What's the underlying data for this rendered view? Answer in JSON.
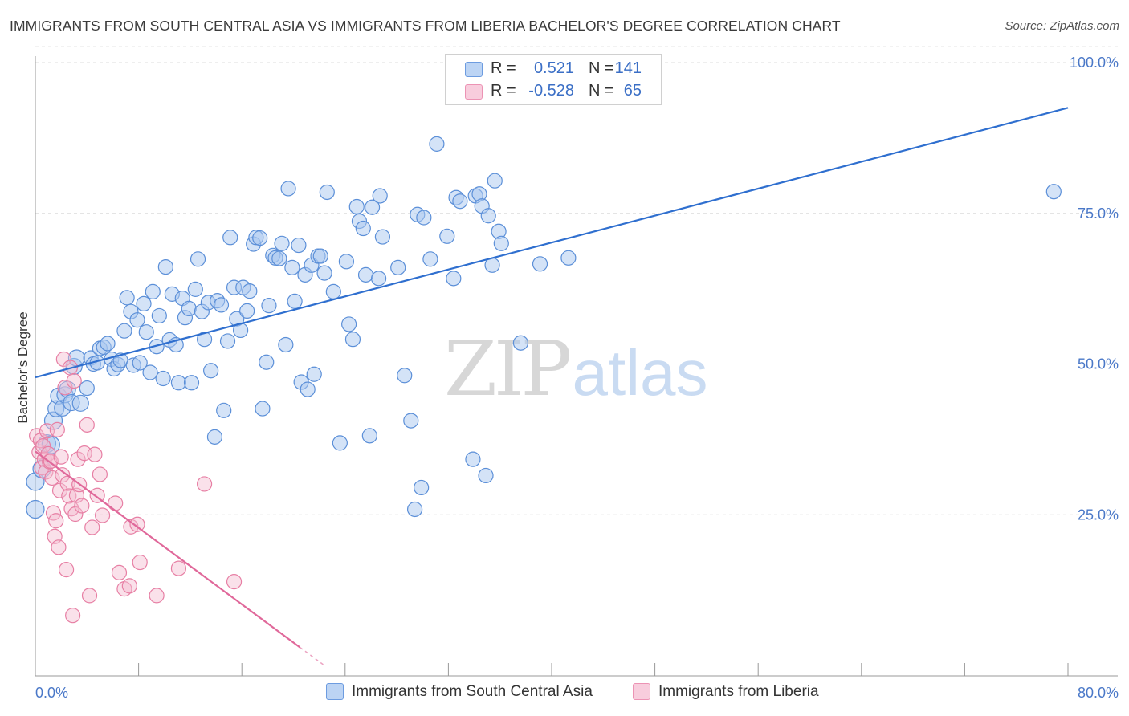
{
  "title": "IMMIGRANTS FROM SOUTH CENTRAL ASIA VS IMMIGRANTS FROM LIBERIA BACHELOR'S DEGREE CORRELATION CHART",
  "source": "Source: ZipAtlas.com",
  "watermark": {
    "zip": "ZIP",
    "atlas": "atlas"
  },
  "legend": {
    "rows": [
      {
        "r_label": "R =",
        "r_value": "0.521",
        "n_label": "N =",
        "n_value": "141"
      },
      {
        "r_label": "R =",
        "r_value": "-0.528",
        "n_label": "N =",
        "n_value": "65"
      }
    ]
  },
  "bottom_legend": {
    "series1": "Immigrants from South Central Asia",
    "series2": "Immigrants from Liberia"
  },
  "colors": {
    "blue_fill": "#a9c8f0",
    "blue_stroke": "#5b8fd8",
    "blue_line": "#2f6fcf",
    "pink_fill": "#f5bcd0",
    "pink_stroke": "#e77fa4",
    "pink_line": "#e0689a",
    "tick_text": "#4a78c8"
  },
  "chart_data": {
    "type": "scatter",
    "title": "IMMIGRANTS FROM SOUTH CENTRAL ASIA VS IMMIGRANTS FROM LIBERIA BACHELOR'S DEGREE CORRELATION CHART",
    "xlabel": "",
    "ylabel": "Bachelor's Degree",
    "xlim": [
      0,
      80
    ],
    "ylim": [
      0,
      100
    ],
    "x_tick_labels": [
      "0.0%",
      "80.0%"
    ],
    "y_ticks": [
      25,
      50,
      75,
      100
    ],
    "y_tick_labels": [
      "25.0%",
      "50.0%",
      "75.0%",
      "100.0%"
    ],
    "grid": true,
    "legend_position": "top-center",
    "series": [
      {
        "name": "Immigrants from South Central Asia",
        "r": 0.521,
        "n": 141,
        "trend": {
          "x": [
            0,
            80
          ],
          "y": [
            47.8,
            92.5
          ]
        },
        "points": [
          [
            0.0,
            25.9
          ],
          [
            0.0,
            30.5
          ],
          [
            0.5,
            32.6
          ],
          [
            0.9,
            36.8
          ],
          [
            1.2,
            36.6
          ],
          [
            1.4,
            40.6
          ],
          [
            1.6,
            42.6
          ],
          [
            1.8,
            44.7
          ],
          [
            2.1,
            42.7
          ],
          [
            2.3,
            44.9
          ],
          [
            2.5,
            45.8
          ],
          [
            2.8,
            43.6
          ],
          [
            3.0,
            49.6
          ],
          [
            3.2,
            51.0
          ],
          [
            3.5,
            43.5
          ],
          [
            4.0,
            46.0
          ],
          [
            4.3,
            51.0
          ],
          [
            4.5,
            50.0
          ],
          [
            4.8,
            50.2
          ],
          [
            5.0,
            52.6
          ],
          [
            5.3,
            52.8
          ],
          [
            5.6,
            53.4
          ],
          [
            5.9,
            50.8
          ],
          [
            6.1,
            49.2
          ],
          [
            6.4,
            49.9
          ],
          [
            6.6,
            50.6
          ],
          [
            6.9,
            55.5
          ],
          [
            7.1,
            61.0
          ],
          [
            7.4,
            58.7
          ],
          [
            7.6,
            49.8
          ],
          [
            7.9,
            57.3
          ],
          [
            8.1,
            50.2
          ],
          [
            8.4,
            60.0
          ],
          [
            8.6,
            55.3
          ],
          [
            8.9,
            48.6
          ],
          [
            9.1,
            62.0
          ],
          [
            9.4,
            52.9
          ],
          [
            9.6,
            58.0
          ],
          [
            9.9,
            47.6
          ],
          [
            10.1,
            66.1
          ],
          [
            10.4,
            54.0
          ],
          [
            10.6,
            61.6
          ],
          [
            10.9,
            53.2
          ],
          [
            11.1,
            46.9
          ],
          [
            11.4,
            60.9
          ],
          [
            11.6,
            57.7
          ],
          [
            11.9,
            59.2
          ],
          [
            12.1,
            46.9
          ],
          [
            12.4,
            62.4
          ],
          [
            12.6,
            67.4
          ],
          [
            12.9,
            58.7
          ],
          [
            13.1,
            54.1
          ],
          [
            13.4,
            60.2
          ],
          [
            13.6,
            48.9
          ],
          [
            13.9,
            37.9
          ],
          [
            14.1,
            60.5
          ],
          [
            14.4,
            59.8
          ],
          [
            14.6,
            42.3
          ],
          [
            14.9,
            53.8
          ],
          [
            15.1,
            71.0
          ],
          [
            15.4,
            62.7
          ],
          [
            15.6,
            57.5
          ],
          [
            15.9,
            55.6
          ],
          [
            16.1,
            62.7
          ],
          [
            16.4,
            58.8
          ],
          [
            16.6,
            62.1
          ],
          [
            16.9,
            69.9
          ],
          [
            17.1,
            71.0
          ],
          [
            17.4,
            70.9
          ],
          [
            17.6,
            42.6
          ],
          [
            17.9,
            50.3
          ],
          [
            18.1,
            59.7
          ],
          [
            18.4,
            68.0
          ],
          [
            18.6,
            67.6
          ],
          [
            18.9,
            67.5
          ],
          [
            19.1,
            70.0
          ],
          [
            19.4,
            53.2
          ],
          [
            19.6,
            79.1
          ],
          [
            19.9,
            66.0
          ],
          [
            20.1,
            60.4
          ],
          [
            20.4,
            69.7
          ],
          [
            20.6,
            47.0
          ],
          [
            20.9,
            64.8
          ],
          [
            21.1,
            45.8
          ],
          [
            21.4,
            66.4
          ],
          [
            21.6,
            48.3
          ],
          [
            21.9,
            67.9
          ],
          [
            22.1,
            67.9
          ],
          [
            22.4,
            65.1
          ],
          [
            22.6,
            78.5
          ],
          [
            23.1,
            62.0
          ],
          [
            23.6,
            36.9
          ],
          [
            24.1,
            67.0
          ],
          [
            24.3,
            56.6
          ],
          [
            24.6,
            54.1
          ],
          [
            24.9,
            76.1
          ],
          [
            25.1,
            73.7
          ],
          [
            25.4,
            72.5
          ],
          [
            25.6,
            64.8
          ],
          [
            25.9,
            38.1
          ],
          [
            26.1,
            76.0
          ],
          [
            26.6,
            64.2
          ],
          [
            26.9,
            71.1
          ],
          [
            26.7,
            77.9
          ],
          [
            28.1,
            66.0
          ],
          [
            28.6,
            48.1
          ],
          [
            29.1,
            40.6
          ],
          [
            29.4,
            25.9
          ],
          [
            29.6,
            74.8
          ],
          [
            29.9,
            29.5
          ],
          [
            30.1,
            74.3
          ],
          [
            30.6,
            67.4
          ],
          [
            31.1,
            86.5
          ],
          [
            31.9,
            71.2
          ],
          [
            32.4,
            64.2
          ],
          [
            32.6,
            77.6
          ],
          [
            32.9,
            77.0
          ],
          [
            33.9,
            34.2
          ],
          [
            34.1,
            77.9
          ],
          [
            34.4,
            78.2
          ],
          [
            34.6,
            76.2
          ],
          [
            34.9,
            31.5
          ],
          [
            35.1,
            74.6
          ],
          [
            35.4,
            66.4
          ],
          [
            35.6,
            80.4
          ],
          [
            35.9,
            72.0
          ],
          [
            36.1,
            70.0
          ],
          [
            37.6,
            53.5
          ],
          [
            39.1,
            66.6
          ],
          [
            41.3,
            67.6
          ],
          [
            78.9,
            78.6
          ]
        ]
      },
      {
        "name": "Immigrants from Liberia",
        "r": -0.528,
        "n": 65,
        "trend": {
          "x": [
            0,
            20.5
          ],
          "y": [
            35.5,
            3.0
          ]
        },
        "points": [
          [
            0.1,
            38.1
          ],
          [
            0.3,
            35.4
          ],
          [
            0.4,
            37.3
          ],
          [
            0.5,
            32.8
          ],
          [
            0.6,
            36.4
          ],
          [
            0.7,
            34.2
          ],
          [
            0.8,
            32.1
          ],
          [
            0.9,
            38.9
          ],
          [
            1.0,
            35.1
          ],
          [
            1.1,
            33.8
          ],
          [
            1.2,
            33.9
          ],
          [
            1.3,
            31.1
          ],
          [
            1.4,
            25.3
          ],
          [
            1.5,
            21.4
          ],
          [
            1.6,
            24.0
          ],
          [
            1.7,
            39.1
          ],
          [
            1.8,
            19.6
          ],
          [
            1.9,
            29.0
          ],
          [
            2.0,
            34.6
          ],
          [
            2.1,
            31.6
          ],
          [
            2.2,
            50.8
          ],
          [
            2.3,
            46.1
          ],
          [
            2.4,
            15.9
          ],
          [
            2.5,
            30.2
          ],
          [
            2.6,
            28.1
          ],
          [
            2.7,
            49.4
          ],
          [
            2.8,
            26.0
          ],
          [
            2.9,
            8.3
          ],
          [
            3.0,
            47.2
          ],
          [
            3.1,
            25.1
          ],
          [
            3.2,
            28.2
          ],
          [
            3.3,
            34.2
          ],
          [
            3.4,
            30.0
          ],
          [
            3.6,
            26.5
          ],
          [
            3.8,
            35.2
          ],
          [
            4.0,
            39.9
          ],
          [
            4.2,
            11.6
          ],
          [
            4.4,
            22.9
          ],
          [
            4.6,
            35.0
          ],
          [
            4.8,
            28.2
          ],
          [
            5.0,
            31.7
          ],
          [
            5.2,
            24.9
          ],
          [
            6.2,
            26.9
          ],
          [
            6.5,
            15.4
          ],
          [
            6.9,
            12.7
          ],
          [
            7.3,
            13.2
          ],
          [
            7.4,
            23.0
          ],
          [
            7.9,
            23.4
          ],
          [
            8.1,
            17.1
          ],
          [
            9.4,
            11.6
          ],
          [
            11.1,
            16.1
          ],
          [
            13.1,
            30.1
          ],
          [
            15.4,
            13.9
          ]
        ]
      }
    ]
  }
}
